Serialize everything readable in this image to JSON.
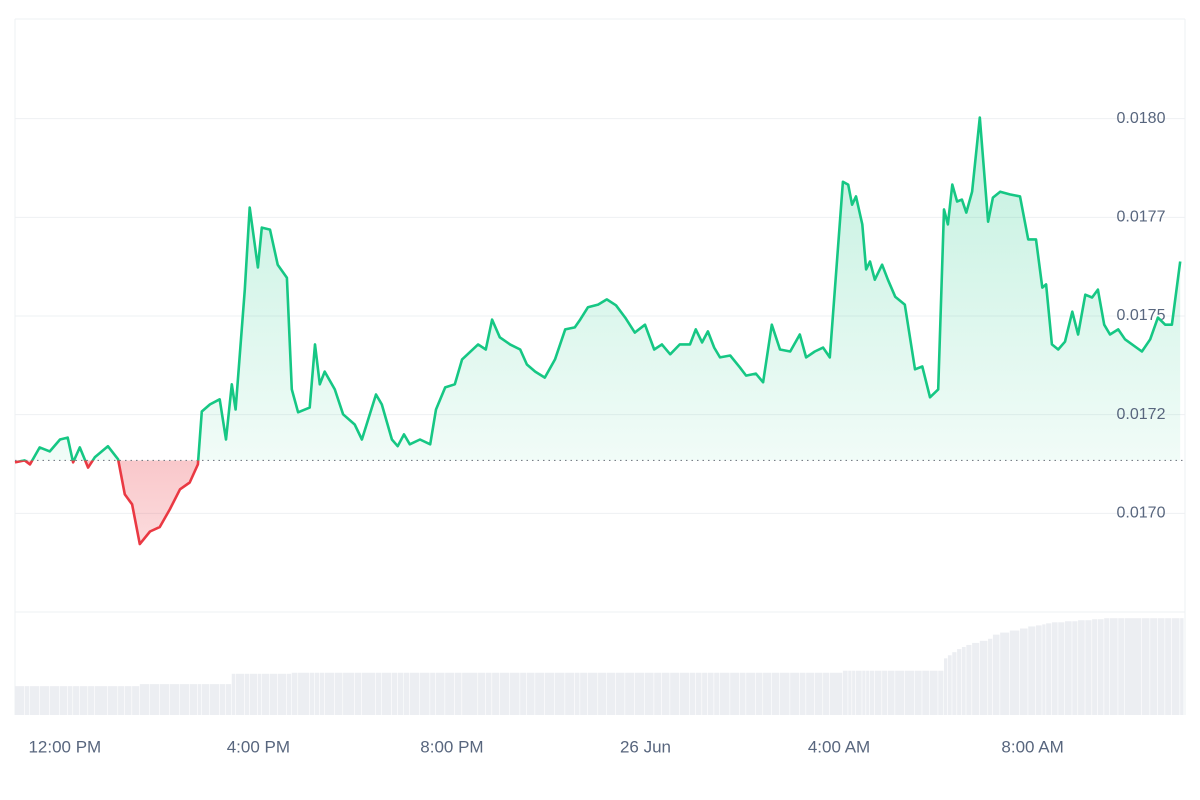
{
  "chart_data": {
    "type": "line",
    "x": [
      -1.03,
      -0.83,
      -0.72,
      -0.52,
      -0.31,
      -0.1,
      0.06,
      0.17,
      0.31,
      0.48,
      0.62,
      0.89,
      1.1,
      1.24,
      1.39,
      1.55,
      1.76,
      1.96,
      2.17,
      2.38,
      2.58,
      2.75,
      2.83,
      3.0,
      3.2,
      3.33,
      3.45,
      3.53,
      3.72,
      3.82,
      3.99,
      4.07,
      4.24,
      4.4,
      4.59,
      4.69,
      4.82,
      5.06,
      5.17,
      5.27,
      5.37,
      5.58,
      5.75,
      5.99,
      6.14,
      6.43,
      6.55,
      6.76,
      6.88,
      7.01,
      7.13,
      7.34,
      7.55,
      7.67,
      7.86,
      8.06,
      8.21,
      8.54,
      8.7,
      8.83,
      8.99,
      9.2,
      9.41,
      9.55,
      9.72,
      9.92,
      10.13,
      10.34,
      10.54,
      10.65,
      10.81,
      11.02,
      11.2,
      11.39,
      11.58,
      11.78,
      11.99,
      12.18,
      12.34,
      12.51,
      12.71,
      12.92,
      13.04,
      13.17,
      13.29,
      13.42,
      13.54,
      13.75,
      13.95,
      14.08,
      14.28,
      14.43,
      14.61,
      14.78,
      14.99,
      15.19,
      15.32,
      15.5,
      15.67,
      15.81,
      16.08,
      16.19,
      16.27,
      16.35,
      16.48,
      16.56,
      16.64,
      16.74,
      16.89,
      17.01,
      17.16,
      17.36,
      17.57,
      17.72,
      17.88,
      18.05,
      18.17,
      18.25,
      18.34,
      18.44,
      18.54,
      18.63,
      18.75,
      18.91,
      19.08,
      19.18,
      19.33,
      19.53,
      19.74,
      19.91,
      20.07,
      20.2,
      20.28,
      20.4,
      20.53,
      20.67,
      20.82,
      20.94,
      21.09,
      21.23,
      21.35,
      21.48,
      21.6,
      21.77,
      21.91,
      22.26,
      22.43,
      22.59,
      22.74,
      22.88,
      23.05
    ],
    "values": [
      0.017129,
      0.017134,
      0.017124,
      0.017167,
      0.017157,
      0.017187,
      0.017192,
      0.017129,
      0.017167,
      0.017116,
      0.017142,
      0.01717,
      0.017137,
      0.017048,
      0.017023,
      0.016922,
      0.016954,
      0.016965,
      0.01701,
      0.017061,
      0.017078,
      0.017124,
      0.017258,
      0.017276,
      0.017289,
      0.017187,
      0.017327,
      0.017263,
      0.017567,
      0.017775,
      0.017623,
      0.017724,
      0.017719,
      0.01763,
      0.017597,
      0.017314,
      0.017256,
      0.017268,
      0.017428,
      0.017327,
      0.017359,
      0.017314,
      0.017251,
      0.017225,
      0.017187,
      0.017301,
      0.017276,
      0.017187,
      0.01717,
      0.0172,
      0.017175,
      0.017187,
      0.017175,
      0.017263,
      0.017319,
      0.017327,
      0.01739,
      0.017428,
      0.017415,
      0.017491,
      0.017446,
      0.017428,
      0.017415,
      0.017377,
      0.017359,
      0.017344,
      0.01739,
      0.017466,
      0.017471,
      0.017491,
      0.017522,
      0.017529,
      0.017542,
      0.017527,
      0.017496,
      0.017458,
      0.017478,
      0.017415,
      0.017428,
      0.017403,
      0.017428,
      0.017428,
      0.017466,
      0.017433,
      0.017461,
      0.01742,
      0.017395,
      0.0174,
      0.01737,
      0.017349,
      0.017354,
      0.017332,
      0.017478,
      0.017415,
      0.01741,
      0.017453,
      0.017395,
      0.01741,
      0.01742,
      0.017395,
      0.01784,
      0.017833,
      0.017782,
      0.017803,
      0.017732,
      0.017618,
      0.017638,
      0.017592,
      0.01763,
      0.017592,
      0.017549,
      0.017529,
      0.017365,
      0.017372,
      0.017294,
      0.017314,
      0.01777,
      0.017732,
      0.017833,
      0.01779,
      0.017795,
      0.017762,
      0.017815,
      0.018003,
      0.017739,
      0.0178,
      0.017815,
      0.017808,
      0.017803,
      0.017694,
      0.017694,
      0.017572,
      0.01758,
      0.017428,
      0.017415,
      0.017435,
      0.017511,
      0.017453,
      0.017554,
      0.017547,
      0.017567,
      0.017478,
      0.017453,
      0.017466,
      0.017441,
      0.01741,
      0.017441,
      0.017496,
      0.017478,
      0.017478,
      0.017638
    ],
    "volume": [
      28,
      28,
      28,
      28,
      28,
      28,
      28,
      28,
      28,
      28,
      28,
      28,
      28,
      28,
      28,
      30,
      30,
      30,
      30,
      30,
      30,
      30,
      30,
      30,
      30,
      30,
      40,
      40,
      40,
      40,
      40,
      40,
      40,
      40,
      40,
      41,
      41,
      41,
      41,
      41,
      41,
      41,
      41,
      41,
      41,
      41,
      41,
      41,
      41,
      41,
      41,
      41,
      41,
      41,
      41,
      41,
      41,
      41,
      41,
      41,
      41,
      41,
      41,
      41,
      41,
      41,
      41,
      41,
      41,
      41,
      41,
      41,
      41,
      41,
      41,
      41,
      41,
      41,
      41,
      41,
      41,
      41,
      41,
      41,
      41,
      41,
      41,
      41,
      41,
      41,
      41,
      41,
      41,
      41,
      41,
      41,
      41,
      41,
      41,
      41,
      43,
      43,
      43,
      43,
      43,
      43,
      43,
      43,
      43,
      43,
      43,
      43,
      43,
      43,
      43,
      43,
      55,
      58,
      61,
      64,
      66,
      68,
      70,
      72,
      74,
      78,
      80,
      82,
      84,
      86,
      87,
      88,
      89,
      90,
      90,
      91,
      91,
      92,
      92,
      93,
      93,
      94,
      94,
      94,
      94,
      94,
      94,
      94,
      94,
      94,
      94
    ],
    "volume_lim": [
      0,
      100
    ],
    "baseline": 0.017134,
    "up_color": "#16c784",
    "down_color": "#ea3943",
    "volume_color": "#eceef2",
    "xlim": [
      -1.03,
      23.15
    ],
    "xticks": [
      {
        "value": 0,
        "label": "12:00 PM"
      },
      {
        "value": 4,
        "label": "4:00 PM"
      },
      {
        "value": 8,
        "label": "8:00 PM"
      },
      {
        "value": 12,
        "label": "26 Jun"
      },
      {
        "value": 16,
        "label": "4:00 AM"
      },
      {
        "value": 20,
        "label": "8:00 AM"
      }
    ],
    "ylim": [
      0.01675,
      0.01825
    ],
    "yticks": [
      {
        "value": 0.017,
        "label": "0.0170"
      },
      {
        "value": 0.01725,
        "label": "0.0172"
      },
      {
        "value": 0.0175,
        "label": "0.0175"
      },
      {
        "value": 0.01775,
        "label": "0.0177"
      },
      {
        "value": 0.018,
        "label": "0.0180"
      }
    ],
    "grid": true
  }
}
